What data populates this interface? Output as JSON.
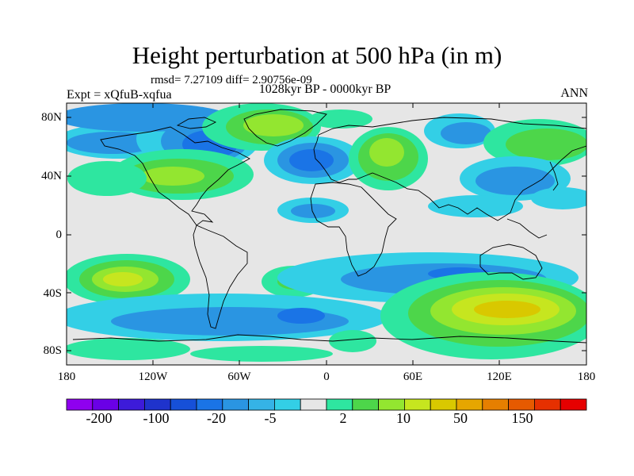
{
  "title": "Height perturbation at 500 hPa (in m)",
  "stats": "rmsd= 7.27109 diff= 2.90756e-09",
  "period": "1028kyr BP - 0000kyr BP",
  "experiment": "Expt = xQfuB-xqfua",
  "season": "ANN",
  "lat_labels": [
    "80N",
    "40N",
    "0",
    "40S",
    "80S"
  ],
  "lon_labels": [
    "180",
    "120W",
    "60W",
    "0",
    "60E",
    "120E",
    "180"
  ],
  "colorbar": {
    "colors": [
      "#8f00ef",
      "#6a00e6",
      "#3d1bd9",
      "#1f33cc",
      "#1650d8",
      "#1a74e6",
      "#2a95e2",
      "#35b3e6",
      "#33cfe6",
      "#e6e6e6",
      "#2ee6a0",
      "#4dd64a",
      "#93e630",
      "#c6e61f",
      "#d9c800",
      "#e6a600",
      "#e67f00",
      "#e65a00",
      "#e63000",
      "#e60000"
    ],
    "labels": [
      "-200",
      "-100",
      "-20",
      "-5",
      "2",
      "10",
      "50",
      "150"
    ]
  }
}
